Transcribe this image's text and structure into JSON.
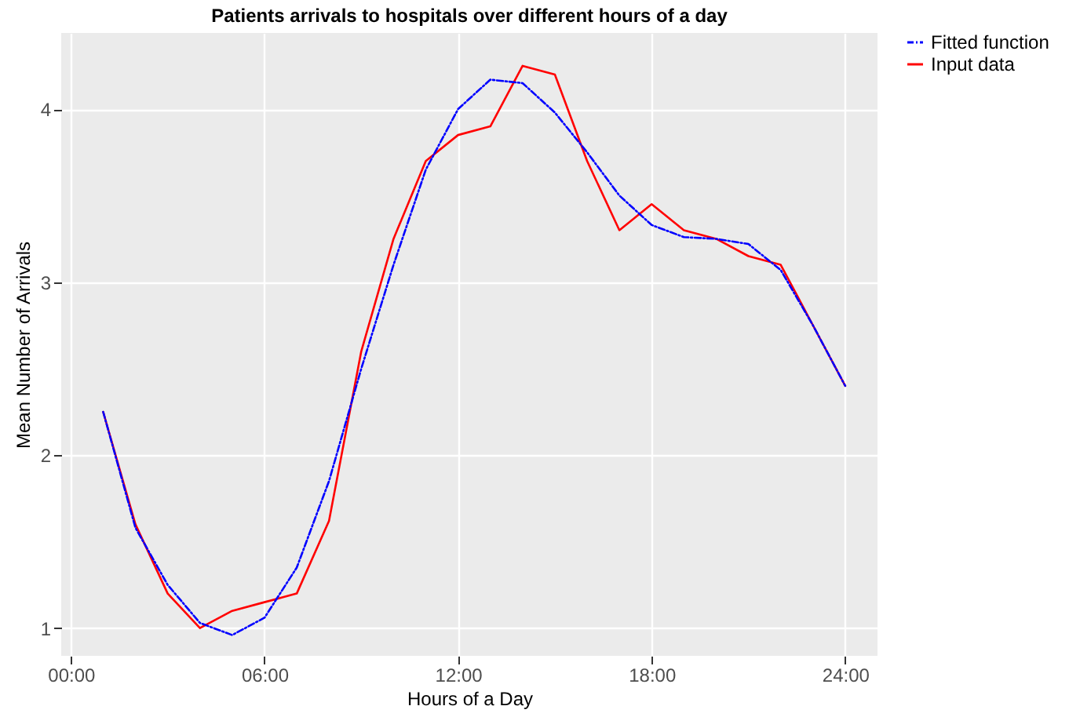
{
  "chart_data": {
    "type": "line",
    "title": "Patients arrivals to hospitals over different hours of a day",
    "xlabel": "Hours of a Day",
    "ylabel": "Mean Number of Arrivals",
    "x": [
      1,
      2,
      3,
      4,
      5,
      6,
      7,
      8,
      9,
      10,
      11,
      12,
      13,
      14,
      15,
      16,
      17,
      18,
      19,
      20,
      21,
      22,
      23,
      24
    ],
    "series": [
      {
        "name": "Fitted function",
        "color": "#0000ff",
        "line_style": "dashed",
        "values": [
          2.25,
          1.58,
          1.25,
          1.03,
          0.96,
          1.06,
          1.35,
          1.85,
          2.5,
          3.1,
          3.65,
          4.0,
          4.17,
          4.15,
          3.98,
          3.75,
          3.5,
          3.33,
          3.26,
          3.25,
          3.22,
          3.07,
          2.75,
          2.4
        ]
      },
      {
        "name": "Input data",
        "color": "#ff0000",
        "line_style": "solid",
        "values": [
          2.25,
          1.6,
          1.2,
          1.0,
          1.1,
          1.15,
          1.2,
          1.62,
          2.6,
          3.25,
          3.7,
          3.85,
          3.9,
          4.25,
          4.2,
          3.7,
          3.3,
          3.45,
          3.3,
          3.25,
          3.15,
          3.1,
          2.75,
          2.4
        ]
      }
    ],
    "xlim": [
      -0.3,
      25
    ],
    "xticks": [
      {
        "value": 0,
        "label": "00:00"
      },
      {
        "value": 6,
        "label": "06:00"
      },
      {
        "value": 12,
        "label": "12:00"
      },
      {
        "value": 18,
        "label": "18:00"
      },
      {
        "value": 24,
        "label": "24:00"
      }
    ],
    "ylim": [
      0.84,
      4.44
    ],
    "yticks": [
      1,
      2,
      3,
      4
    ],
    "grid": true,
    "legend": "right",
    "marker": "none"
  }
}
